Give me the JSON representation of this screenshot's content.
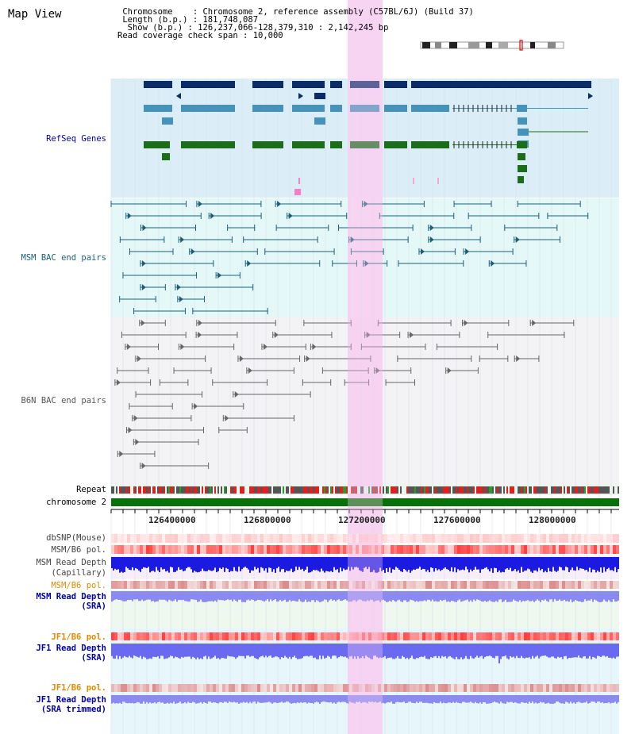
{
  "header": {
    "title": "Map View",
    "chromosome_key": "Chromosome",
    "chromosome_val": "Chromosome 2, reference assembly (C57BL/6J) (Build 37)",
    "length_key": "Length (b.p.)",
    "length_val": "181,748,087",
    "show_key": "Show (b.p.)",
    "show_val": "126,237,066-128,379,310 : 2,142,245 bp",
    "coverage_key": "Read coverage check span",
    "coverage_val": "10,000"
  },
  "tracks": {
    "refseq": "RefSeq Genes",
    "msm_bac": "MSM BAC end pairs",
    "b6n_bac": "B6N BAC end pairs",
    "repeat": "Repeat",
    "chromosome": "chromosome 2",
    "dbsnp": "dbSNP(Mouse)",
    "msm_b6_pol_1": "MSM/B6 pol.",
    "msm_depth_cap_1": "MSM Read Depth",
    "msm_depth_cap_2": "(Capillary)",
    "msm_b6_pol_2": "MSM/B6 pol.",
    "msm_depth_sra_1": "MSM Read Depth",
    "msm_depth_sra_2": "(SRA)",
    "jf1_pol_1": "JF1/B6 pol.",
    "jf1_depth_1": "JF1 Read Depth",
    "jf1_depth_2": "(SRA)",
    "jf1_pol_2": "JF1/B6 pol.",
    "jf1_trim_1": "JF1 Read Depth",
    "jf1_trim_2": "(SRA trimmed)"
  },
  "ruler": {
    "ticks": [
      "126400000",
      "126800000",
      "127200000",
      "127600000",
      "128000000"
    ]
  },
  "colors": {
    "refseq_dark": "#0a2d6a",
    "refseq_teal": "#4593b8",
    "refseq_green": "#1a6e1a",
    "msm_line": "#1a5f7a",
    "b6n_line": "#666666",
    "highlight": "#f7d6f2",
    "label_blue": "#0000aa",
    "label_orange": "#e08a00"
  }
}
